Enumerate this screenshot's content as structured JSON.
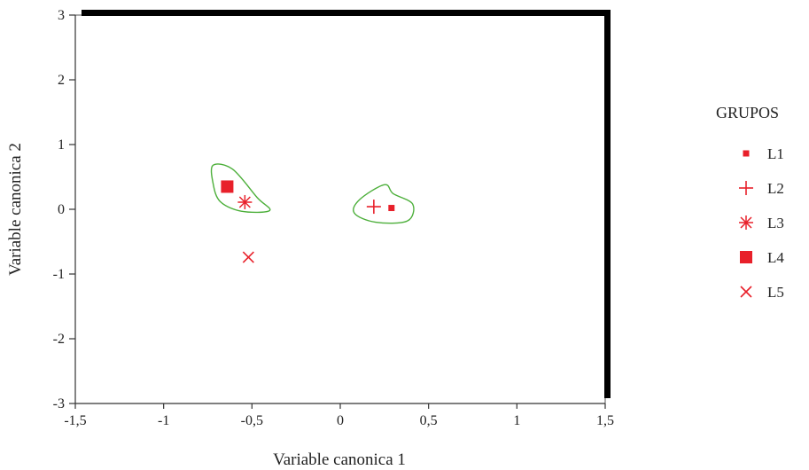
{
  "chart_data": {
    "type": "scatter",
    "title": "",
    "xlabel": "Variable canonica 1",
    "ylabel": "Variable canonica 2",
    "xlim": [
      -1.5,
      1.5
    ],
    "ylim": [
      -3,
      3
    ],
    "xticks": [
      -1.5,
      -1,
      -0.5,
      0,
      0.5,
      1,
      1.5
    ],
    "xtick_labels": [
      "-1,5",
      "-1",
      "-0,5",
      "0",
      "0,5",
      "1",
      "1,5"
    ],
    "yticks": [
      -3,
      -2,
      -1,
      0,
      1,
      2,
      3
    ],
    "ytick_labels": [
      "-3",
      "-2",
      "-1",
      "0",
      "1",
      "2",
      "3"
    ],
    "grid": false,
    "legend": {
      "title": "GRUPOS",
      "position": "right"
    },
    "series": [
      {
        "name": "L1",
        "marker": "small-square",
        "x": [
          0.29
        ],
        "y": [
          0.02
        ]
      },
      {
        "name": "L2",
        "marker": "plus",
        "x": [
          0.19
        ],
        "y": [
          0.04
        ]
      },
      {
        "name": "L3",
        "marker": "asterisk",
        "x": [
          -0.54
        ],
        "y": [
          0.11
        ]
      },
      {
        "name": "L4",
        "marker": "big-square",
        "x": [
          -0.64
        ],
        "y": [
          0.35
        ]
      },
      {
        "name": "L5",
        "marker": "cross",
        "x": [
          -0.52
        ],
        "y": [
          -0.74
        ]
      }
    ],
    "clusters": [
      {
        "members": [
          "L3",
          "L4"
        ],
        "outline": [
          [
            -0.72,
            0.68
          ],
          [
            -0.61,
            0.62
          ],
          [
            -0.47,
            0.18
          ],
          [
            -0.4,
            -0.02
          ],
          [
            -0.56,
            -0.03
          ],
          [
            -0.68,
            0.12
          ],
          [
            -0.72,
            0.4
          ]
        ]
      },
      {
        "members": [
          "L1",
          "L2"
        ],
        "outline": [
          [
            0.25,
            0.38
          ],
          [
            0.3,
            0.24
          ],
          [
            0.41,
            0.08
          ],
          [
            0.38,
            -0.18
          ],
          [
            0.2,
            -0.2
          ],
          [
            0.08,
            -0.06
          ],
          [
            0.11,
            0.15
          ]
        ]
      }
    ],
    "colors": {
      "marker": "#e8202a",
      "cluster_outline": "#4caf3a",
      "frame": "#000000",
      "text": "#222222"
    }
  }
}
